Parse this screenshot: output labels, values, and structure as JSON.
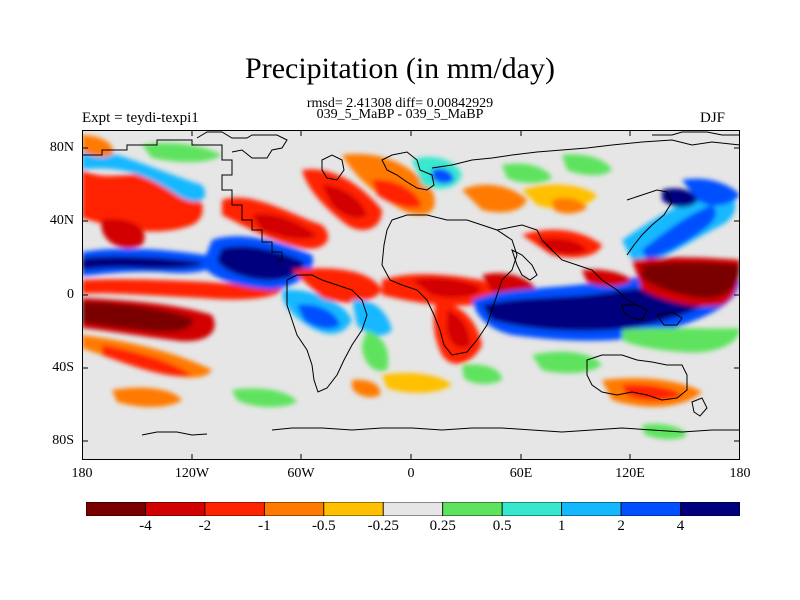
{
  "title": "Precipitation (in mm/day)",
  "stats": "rmsd= 2.41308 diff= 0.00842929",
  "experiments": "039_5_MaBP - 039_5_MaBP",
  "expt_label": "Expt = teydi-texpi1",
  "season": "DJF",
  "lat_ticks": [
    "80N",
    "40N",
    "0",
    "40S",
    "80S"
  ],
  "lon_ticks": [
    "180",
    "120W",
    "60W",
    "0",
    "60E",
    "120E",
    "180"
  ],
  "colorbar": {
    "labels": [
      "-4",
      "-2",
      "-1",
      "-0.5",
      "-0.25",
      "0.25",
      "0.5",
      "1",
      "2",
      "4"
    ],
    "colors": [
      "#7a0000",
      "#d20000",
      "#ff2400",
      "#ff7a00",
      "#ffc000",
      "#e6e6e6",
      "#5ee35e",
      "#37e8cf",
      "#14b8ff",
      "#0050ff",
      "#00007f"
    ]
  },
  "background_color": "#e6e6e6"
}
